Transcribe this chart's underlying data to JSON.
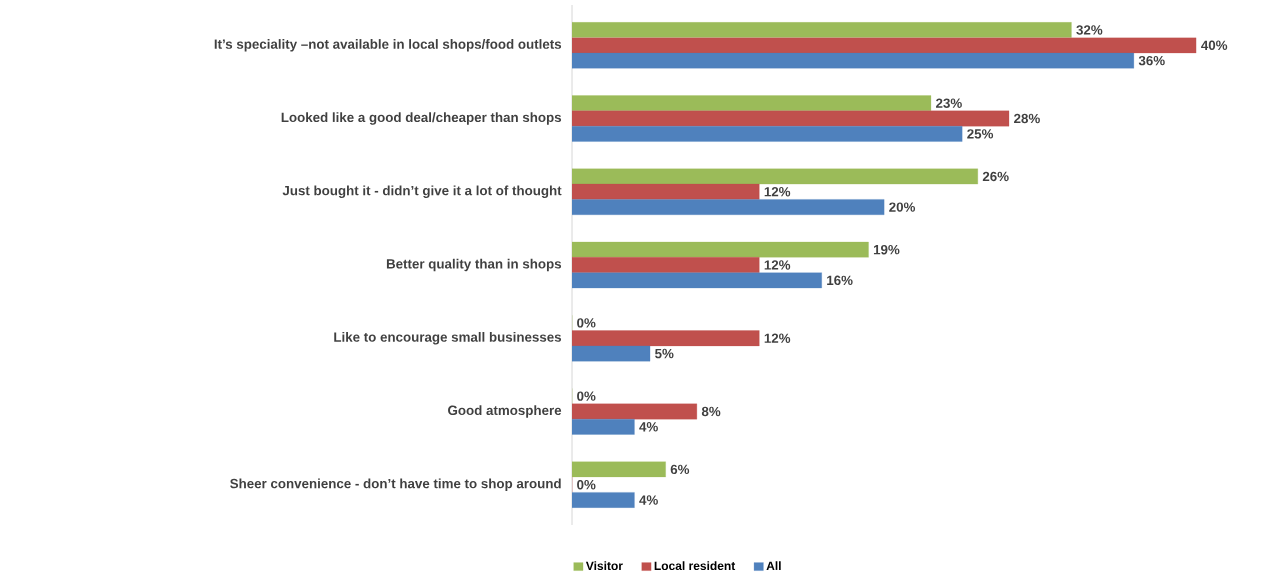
{
  "chart_data": {
    "type": "bar",
    "orientation": "horizontal",
    "legend": "bottom",
    "categories": [
      "It’s speciality –not available in local shops/food outlets",
      "Looked like a good deal/cheaper than shops",
      "Just bought it - didn’t give it a lot of thought",
      "Better quality than in shops",
      "Like to encourage small businesses",
      "Good atmosphere",
      "Sheer convenience - don’t have time to shop around"
    ],
    "series": [
      {
        "name": "Visitor",
        "color": "#9bbb59",
        "values": [
          32,
          23,
          26,
          19,
          0,
          0,
          6
        ],
        "value_labels": [
          "32%",
          "23%",
          "26%",
          "19%",
          "0%",
          "0%",
          "6%"
        ]
      },
      {
        "name": "Local resident",
        "color": "#c0504d",
        "values": [
          40,
          28,
          12,
          12,
          12,
          8,
          0
        ],
        "value_labels": [
          "40%",
          "28%",
          "12%",
          "12%",
          "12%",
          "8%",
          "0%"
        ]
      },
      {
        "name": "All",
        "color": "#4f81bd",
        "values": [
          36,
          25,
          20,
          16,
          5,
          4,
          4
        ],
        "value_labels": [
          "36%",
          "25%",
          "20%",
          "16%",
          "5%",
          "4%",
          "4%"
        ]
      }
    ]
  }
}
